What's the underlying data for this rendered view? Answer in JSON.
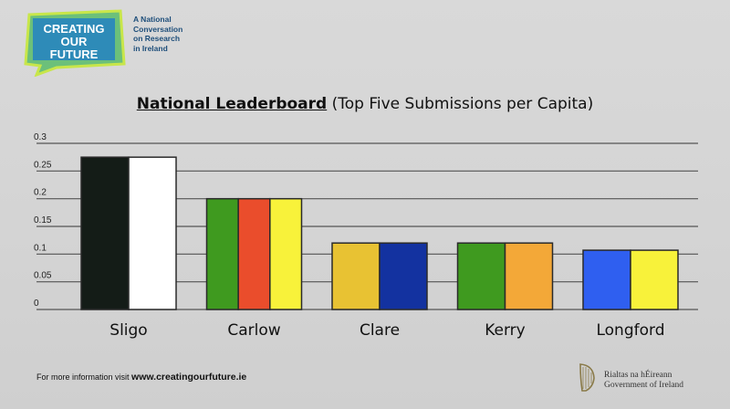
{
  "logo": {
    "line1": "CREATING",
    "line2": "OUR",
    "line3": "FUTURE",
    "tagline": [
      "A National",
      "Conversation",
      "on Research",
      "in Ireland"
    ]
  },
  "chart_data": {
    "type": "bar",
    "title_bold": "National Leaderboard",
    "title_rest": "(Top Five Submissions per Capita)",
    "categories": [
      "Sligo",
      "Carlow",
      "Clare",
      "Kerry",
      "Longford"
    ],
    "values": [
      0.275,
      0.2,
      0.12,
      0.12,
      0.107
    ],
    "stripes": [
      [
        "#141c17",
        "#ffffff"
      ],
      [
        "#3f9a1f",
        "#ea4d2c",
        "#f8f23a"
      ],
      [
        "#e8c233",
        "#1332a0"
      ],
      [
        "#3f9a1f",
        "#f3a838"
      ],
      [
        "#2f5ff0",
        "#f8f23a"
      ]
    ],
    "yticks": [
      "0",
      "0.05",
      "0.1",
      "0.15",
      "0.2",
      "0.25",
      "0.3"
    ],
    "ylim": [
      0,
      0.3
    ],
    "grid": true,
    "xlabel": "",
    "ylabel": ""
  },
  "footer": {
    "prefix": "For more information visit",
    "url": "www.creatingourfuture.ie"
  },
  "government": {
    "line1": "Rialtas na hÉireann",
    "line2": "Government of Ireland"
  }
}
